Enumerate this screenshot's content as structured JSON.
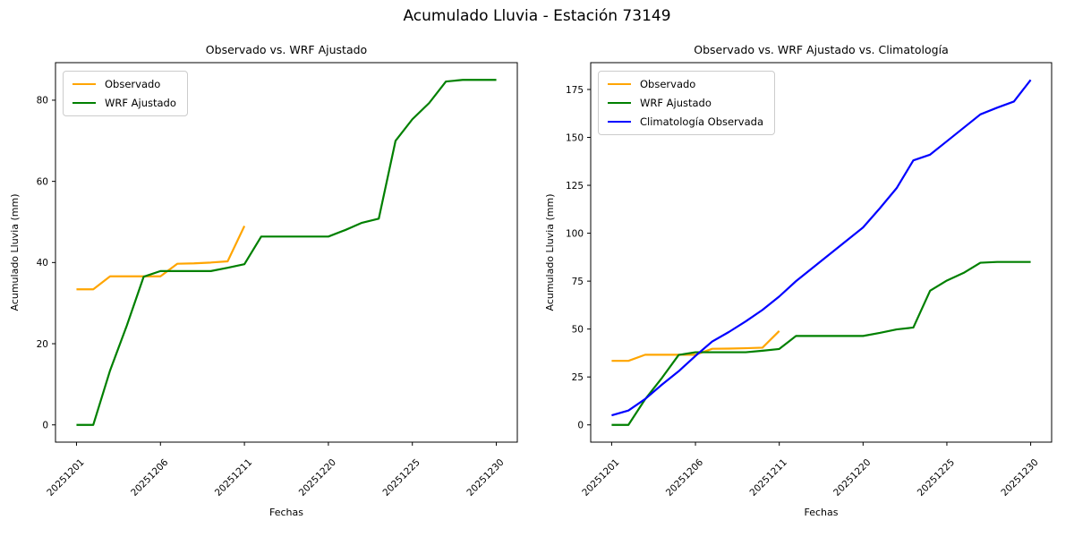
{
  "figure": {
    "suptitle": "Acumulado Lluvia - Estación 73149",
    "background_color": "#ffffff",
    "text_color": "#000000"
  },
  "chart_data": [
    {
      "id": "left",
      "type": "line",
      "title": "Observado vs. WRF Ajustado",
      "xlabel": "Fechas",
      "ylabel": "Acumulado Lluvia (mm)",
      "grid": false,
      "legend_position": "upper-left",
      "xlim": [
        -1.25,
        26.25
      ],
      "ylim": [
        -4.25,
        89.25
      ],
      "yticks": [
        0,
        20,
        40,
        60,
        80
      ],
      "xtick_positions": [
        0,
        5,
        10,
        15,
        20,
        25
      ],
      "xtick_labels": [
        "20251201",
        "20251206",
        "20251211",
        "20251220",
        "20251225",
        "20251230"
      ],
      "xtick_rotation": 45,
      "series": [
        {
          "name": "Observado",
          "color": "#FFA500",
          "x": [
            0,
            1,
            2,
            3,
            4,
            5,
            6,
            7,
            8,
            9,
            10
          ],
          "values": [
            33.4,
            33.4,
            36.6,
            36.6,
            36.6,
            36.6,
            39.7,
            39.8,
            40.0,
            40.3,
            49.0
          ]
        },
        {
          "name": "WRF Ajustado",
          "color": "#008000",
          "x": [
            0,
            1,
            2,
            3,
            4,
            5,
            6,
            7,
            8,
            9,
            10,
            11,
            12,
            13,
            14,
            15,
            16,
            17,
            18,
            19,
            20,
            21,
            22,
            23,
            24,
            25
          ],
          "values": [
            0,
            0,
            13.4,
            24.5,
            36.5,
            37.9,
            37.9,
            37.9,
            37.9,
            38.7,
            39.6,
            46.4,
            46.4,
            46.4,
            46.4,
            46.4,
            48.0,
            49.8,
            50.8,
            70.0,
            75.3,
            79.3,
            84.6,
            85.0,
            85.0,
            85.0
          ]
        }
      ]
    },
    {
      "id": "right",
      "type": "line",
      "title": "Observado vs. WRF Ajustado vs. Climatología",
      "xlabel": "Fechas",
      "ylabel": "Acumulado Lluvia (mm)",
      "grid": false,
      "legend_position": "upper-left",
      "xlim": [
        -1.25,
        26.25
      ],
      "ylim": [
        -9,
        189
      ],
      "yticks": [
        0,
        25,
        50,
        75,
        100,
        125,
        150,
        175
      ],
      "xtick_positions": [
        0,
        5,
        10,
        15,
        20,
        25
      ],
      "xtick_labels": [
        "20251201",
        "20251206",
        "20251211",
        "20251220",
        "20251225",
        "20251230"
      ],
      "xtick_rotation": 45,
      "series": [
        {
          "name": "Observado",
          "color": "#FFA500",
          "x": [
            0,
            1,
            2,
            3,
            4,
            5,
            6,
            7,
            8,
            9,
            10
          ],
          "values": [
            33.4,
            33.4,
            36.6,
            36.6,
            36.6,
            36.6,
            39.7,
            39.8,
            40.0,
            40.3,
            49.0
          ]
        },
        {
          "name": "WRF Ajustado",
          "color": "#008000",
          "x": [
            0,
            1,
            2,
            3,
            4,
            5,
            6,
            7,
            8,
            9,
            10,
            11,
            12,
            13,
            14,
            15,
            16,
            17,
            18,
            19,
            20,
            21,
            22,
            23,
            24,
            25
          ],
          "values": [
            0,
            0,
            13.4,
            24.5,
            36.5,
            37.9,
            37.9,
            37.9,
            37.9,
            38.7,
            39.6,
            46.4,
            46.4,
            46.4,
            46.4,
            46.4,
            48.0,
            49.8,
            50.8,
            70.0,
            75.3,
            79.3,
            84.6,
            85.0,
            85.0,
            85.0
          ]
        },
        {
          "name": "Climatología Observada",
          "color": "#0000FF",
          "x": [
            0,
            1,
            2,
            3,
            4,
            5,
            6,
            7,
            8,
            9,
            10,
            11,
            12,
            13,
            14,
            15,
            16,
            17,
            18,
            19,
            20,
            21,
            22,
            23,
            24,
            25
          ],
          "values": [
            5.0,
            7.5,
            13.5,
            21.0,
            28.0,
            36.0,
            43.5,
            48.5,
            54.0,
            60.0,
            67.0,
            75.0,
            82.0,
            89.0,
            96.0,
            103.0,
            113.0,
            123.5,
            138.0,
            141.0,
            148.0,
            155.0,
            162.0,
            165.5,
            168.7,
            180.0
          ]
        }
      ]
    }
  ]
}
